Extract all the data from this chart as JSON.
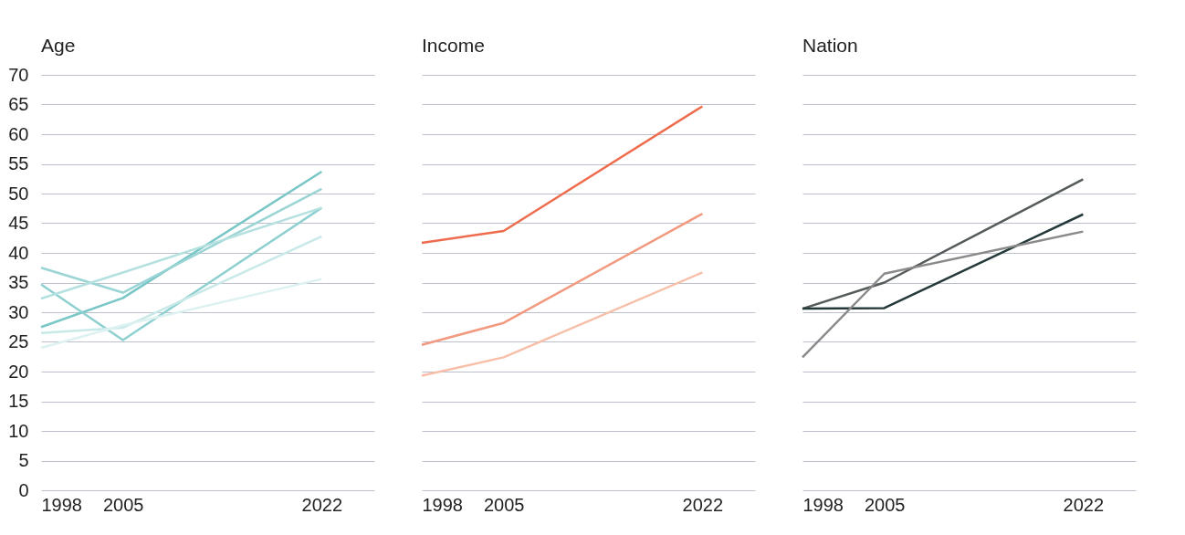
{
  "chart_data": [
    {
      "type": "line",
      "title": "Age",
      "x": [
        1998,
        2005,
        2022
      ],
      "xlim": [
        1998,
        2026.5
      ],
      "xticks": [
        1998,
        2005,
        2022
      ],
      "ylim": [
        0,
        70
      ],
      "yticks": [
        0,
        5,
        10,
        15,
        20,
        25,
        30,
        35,
        40,
        45,
        50,
        55,
        60,
        65,
        70
      ],
      "grid": "y",
      "legend": false,
      "marker": "none",
      "line_style": "solid",
      "series": [
        {
          "color": "#79c6c7",
          "values": [
            27.5,
            32.4,
            53.7
          ]
        },
        {
          "color": "#9ad4d4",
          "values": [
            37.5,
            33.3,
            50.8
          ]
        },
        {
          "color": "#8ecfd0",
          "values": [
            34.7,
            25.3,
            47.6
          ]
        },
        {
          "color": "#b5e0e0",
          "values": [
            32.3,
            36.7,
            47.6
          ]
        },
        {
          "color": "#c9e9e9",
          "values": [
            26.5,
            27.4,
            42.8
          ]
        },
        {
          "color": "#ddf1f1",
          "values": [
            24.0,
            27.8,
            35.6
          ]
        }
      ]
    },
    {
      "type": "line",
      "title": "Income",
      "x": [
        1998,
        2005,
        2022
      ],
      "xlim": [
        1998,
        2026.5
      ],
      "xticks": [
        1998,
        2005,
        2022
      ],
      "ylim": [
        0,
        70
      ],
      "yticks": [
        0,
        5,
        10,
        15,
        20,
        25,
        30,
        35,
        40,
        45,
        50,
        55,
        60,
        65,
        70
      ],
      "grid": "y",
      "legend": false,
      "marker": "none",
      "line_style": "solid",
      "tick_labels": "x",
      "series": [
        {
          "color": "#ee6c4d",
          "values": [
            41.7,
            43.7,
            64.7
          ]
        },
        {
          "color": "#f29a80",
          "values": [
            24.5,
            28.2,
            46.6
          ]
        },
        {
          "color": "#f7bfa8",
          "values": [
            19.3,
            22.4,
            36.7
          ]
        }
      ]
    },
    {
      "type": "line",
      "title": "Nation",
      "x": [
        1998,
        2005,
        2022
      ],
      "xlim": [
        1998,
        2026.5
      ],
      "xticks": [
        1998,
        2005,
        2022
      ],
      "ylim": [
        0,
        70
      ],
      "yticks": [
        0,
        5,
        10,
        15,
        20,
        25,
        30,
        35,
        40,
        45,
        50,
        55,
        60,
        65,
        70
      ],
      "grid": "y",
      "legend": false,
      "marker": "none",
      "line_style": "solid",
      "tick_labels": "x",
      "series": [
        {
          "color": "#555a5a",
          "values": [
            30.6,
            35.0,
            52.4
          ]
        },
        {
          "color": "#24393a",
          "values": [
            30.6,
            30.7,
            46.5
          ]
        },
        {
          "color": "#8a8a8a",
          "values": [
            22.4,
            36.5,
            43.6
          ]
        }
      ]
    }
  ]
}
